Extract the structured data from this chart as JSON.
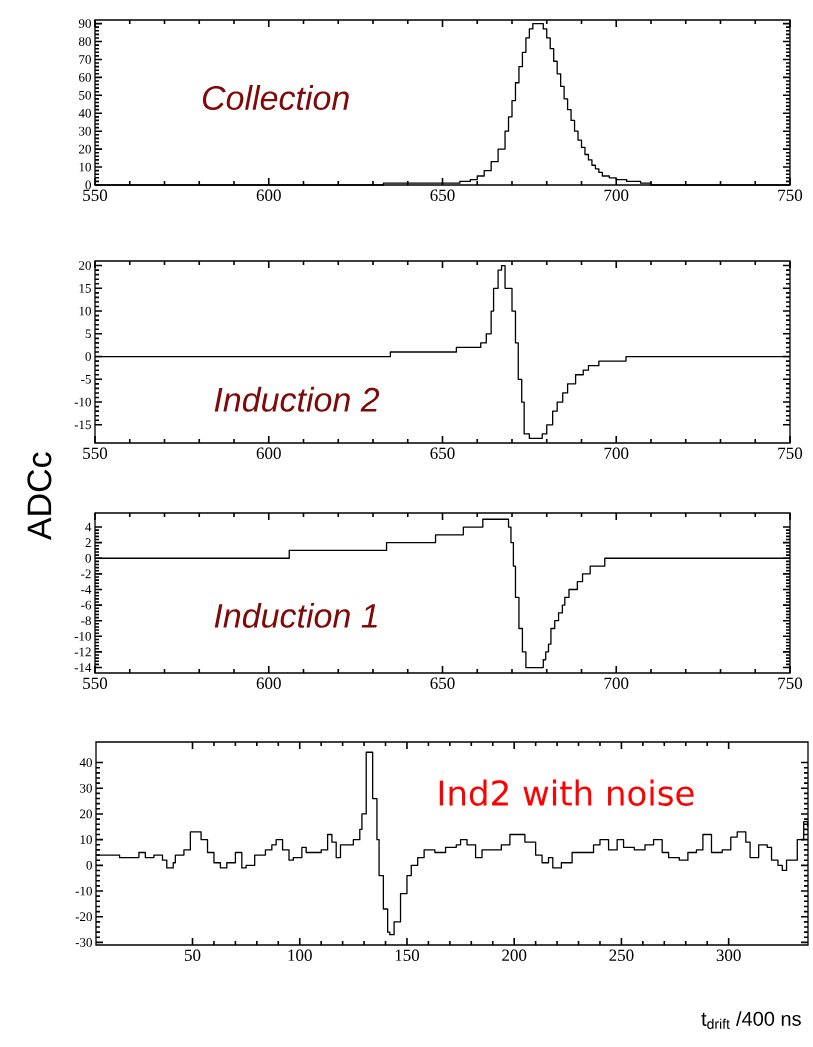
{
  "chart_data": [
    {
      "type": "step",
      "title": "Collection",
      "xlim": [
        550,
        750
      ],
      "xticks": [
        550,
        600,
        650,
        700,
        750
      ],
      "ylim": [
        0,
        92
      ],
      "yticks": [
        0,
        10,
        20,
        30,
        40,
        50,
        60,
        70,
        80,
        90
      ],
      "color": "#000000",
      "x": [
        550,
        633,
        655,
        658,
        660,
        662,
        664,
        666,
        668,
        669,
        670,
        671,
        672,
        673,
        674,
        675,
        676,
        678,
        679,
        680,
        681,
        682,
        683,
        684,
        685,
        686,
        687,
        688,
        689,
        690,
        691,
        692,
        693,
        694,
        695,
        696,
        698,
        700,
        703,
        707,
        710,
        750
      ],
      "values": [
        0,
        1,
        2,
        3,
        5,
        8,
        13,
        20,
        30,
        38,
        47,
        57,
        66,
        74,
        82,
        87,
        90,
        90,
        87,
        82,
        76,
        69,
        62,
        55,
        48,
        42,
        36,
        30,
        25,
        21,
        17,
        14,
        11,
        9,
        7,
        5,
        4,
        3,
        2,
        1,
        0,
        0
      ]
    },
    {
      "type": "step",
      "title": "Induction 2",
      "ylabel": "ADCc",
      "xlim": [
        550,
        750
      ],
      "xticks": [
        550,
        600,
        650,
        700,
        750
      ],
      "ylim": [
        -19,
        21
      ],
      "yticks": [
        -15,
        -10,
        -5,
        0,
        5,
        10,
        15,
        20
      ],
      "color": "#000000",
      "x": [
        550,
        635,
        654,
        661,
        662.6,
        664,
        664.7,
        666,
        667,
        668,
        670,
        671,
        671.8,
        672.8,
        673.5,
        675,
        676,
        678.7,
        680,
        681.7,
        683,
        684.6,
        686,
        688.3,
        690.5,
        692,
        695,
        702.8,
        750
      ],
      "values": [
        0,
        1,
        2,
        3,
        5,
        10,
        15,
        19,
        20,
        15,
        10,
        3,
        -5,
        -10,
        -17,
        -18,
        -18,
        -17,
        -15,
        -12,
        -10,
        -8,
        -6,
        -4,
        -3,
        -2,
        -1,
        0,
        0
      ]
    },
    {
      "type": "step",
      "title": "Induction 1",
      "xlim": [
        550,
        750
      ],
      "xticks": [
        550,
        600,
        650,
        700,
        750
      ],
      "ylim": [
        -14.7,
        5.8
      ],
      "yticks": [
        -14,
        -12,
        -10,
        -8,
        -6,
        -4,
        -2,
        0,
        2,
        4
      ],
      "color": "#000000",
      "x": [
        550,
        605.9,
        633.9,
        648,
        656,
        661.6,
        669,
        669.7,
        670.4,
        671,
        672,
        673,
        674,
        675.6,
        679,
        679.7,
        680.5,
        681.2,
        682.3,
        683.4,
        684.5,
        685.2,
        686.4,
        687,
        688.8,
        690.3,
        692.5,
        696.7,
        750
      ],
      "values": [
        0,
        1,
        2,
        3,
        4,
        5,
        4,
        2,
        -1,
        -5,
        -9,
        -12,
        -14,
        -14,
        -13,
        -12,
        -11,
        -9,
        -8,
        -7,
        -6,
        -5,
        -4,
        -4,
        -3,
        -2,
        -1,
        0,
        0
      ]
    },
    {
      "type": "step",
      "title": "Ind2 with noise",
      "xlabel": "t$_{drift}$ /400 ns",
      "xlim": [
        5,
        337
      ],
      "xticks": [
        50,
        100,
        150,
        200,
        250,
        300
      ],
      "ylim": [
        -31,
        48
      ],
      "yticks": [
        -30,
        -20,
        -10,
        0,
        10,
        20,
        30,
        40
      ],
      "color": "#000000",
      "x": [
        5.2,
        16,
        21,
        25,
        28,
        32,
        36,
        38,
        41,
        42,
        46,
        49,
        52,
        54,
        57,
        60,
        63,
        66,
        70,
        73,
        75,
        79,
        84,
        87,
        89,
        92,
        95,
        97,
        101,
        103,
        107,
        110,
        113,
        115,
        117,
        119,
        123,
        125,
        128,
        129,
        131,
        133,
        134,
        136,
        137,
        139,
        141,
        142,
        144,
        147,
        150,
        152,
        155,
        158,
        163,
        168,
        173,
        175,
        178,
        182,
        185,
        189,
        194,
        198,
        201,
        205,
        210,
        213,
        216,
        218,
        222,
        227,
        232,
        237,
        240,
        244,
        248,
        251,
        256,
        261,
        265,
        269,
        272,
        277,
        281,
        285,
        288,
        292,
        297,
        301,
        304,
        308,
        310,
        314,
        318,
        320,
        323,
        325,
        327,
        332,
        335,
        336.8
      ],
      "values": [
        4,
        3,
        3,
        5,
        3,
        4,
        2,
        -1,
        1,
        4,
        6,
        13,
        13,
        10,
        5,
        1,
        -1,
        1,
        5,
        -1,
        0,
        4,
        6,
        8,
        10,
        6,
        2,
        3,
        7,
        5,
        5,
        6,
        12,
        9,
        3,
        8,
        8,
        10,
        14,
        20,
        44,
        44,
        26,
        10,
        -4,
        -17,
        -26,
        -27,
        -22,
        -11,
        -4,
        0,
        3,
        6,
        5,
        7,
        8,
        10,
        8,
        3,
        6,
        6,
        8,
        12,
        12,
        9,
        4,
        1,
        3,
        -1,
        1,
        5,
        5,
        8,
        10,
        6,
        10,
        7,
        6,
        8,
        10,
        5,
        3,
        2,
        5,
        6,
        12,
        5,
        6,
        11,
        13,
        9,
        3,
        8,
        7,
        2,
        0,
        -2,
        2,
        10,
        17,
        15
      ]
    }
  ]
}
